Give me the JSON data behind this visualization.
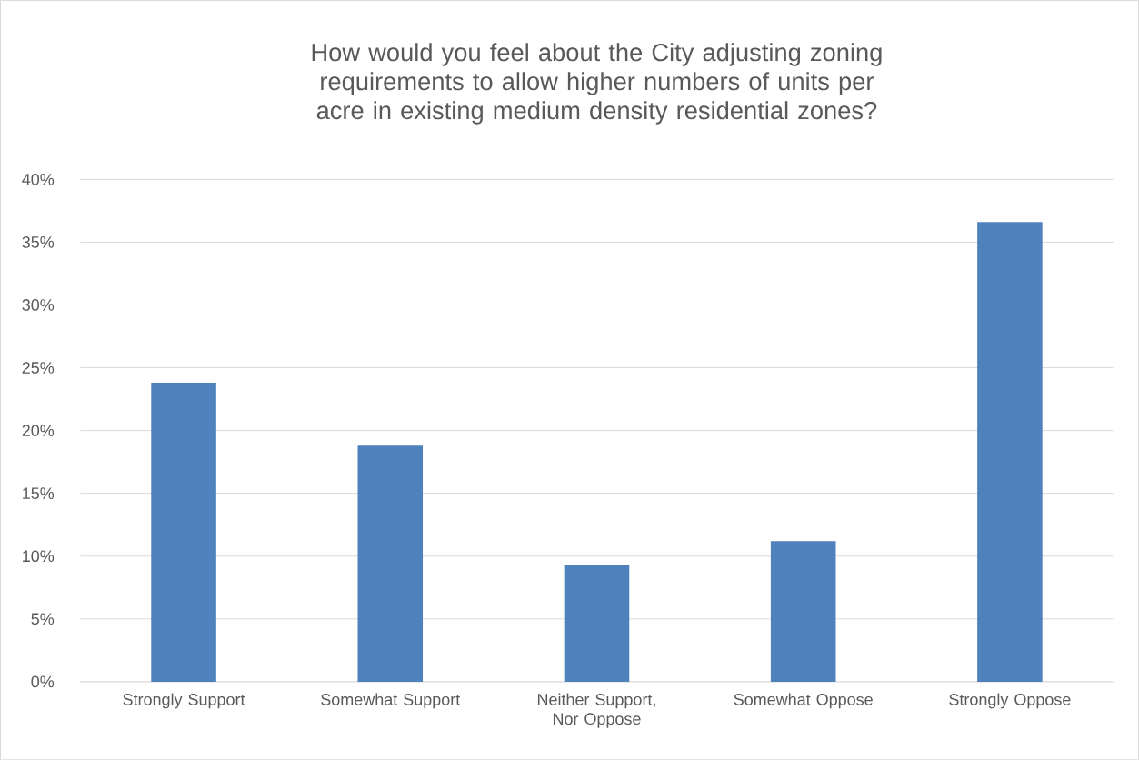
{
  "chart_data": {
    "type": "bar",
    "title": "How would you feel about the City adjusting zoning requirements to allow higher numbers of units per acre in existing medium density residential zones?",
    "categories": [
      "Strongly Support",
      "Somewhat Support",
      "Neither Support, Nor Oppose",
      "Somewhat Oppose",
      "Strongly Oppose"
    ],
    "values": [
      23.8,
      18.8,
      9.3,
      11.2,
      36.6
    ],
    "color": "#4f81bd",
    "ylim": [
      0,
      40
    ],
    "yticks": [
      {
        "value": 0,
        "label": "0%"
      },
      {
        "value": 5,
        "label": "5%"
      },
      {
        "value": 10,
        "label": "10%"
      },
      {
        "value": 15,
        "label": "15%"
      },
      {
        "value": 20,
        "label": "20%"
      },
      {
        "value": 25,
        "label": "25%"
      },
      {
        "value": 30,
        "label": "30%"
      },
      {
        "value": 35,
        "label": "35%"
      },
      {
        "value": 40,
        "label": "40%"
      }
    ],
    "grid": "y"
  }
}
